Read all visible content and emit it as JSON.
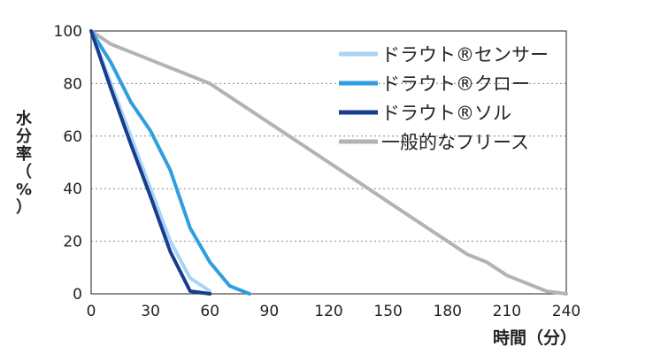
{
  "chart_data": {
    "type": "line",
    "title": "",
    "xlabel": "時間（分）",
    "ylabel": "水分率（%）",
    "xlim": [
      0,
      240
    ],
    "ylim": [
      0,
      100
    ],
    "x_ticks": [
      "0",
      "30",
      "60",
      "90",
      "120",
      "150",
      "180",
      "210",
      "240"
    ],
    "y_ticks": [
      "0",
      "20",
      "40",
      "60",
      "80",
      "100"
    ],
    "grid": "horizontal-dotted",
    "legend_position": "top-right",
    "series": [
      {
        "name": "ドラウト®センサー",
        "color": "#a8d4f5",
        "x": [
          0,
          10,
          20,
          30,
          40,
          50,
          60
        ],
        "y": [
          100,
          80,
          60,
          40,
          20,
          6,
          1
        ]
      },
      {
        "name": "ドラウト®クロー",
        "color": "#2f9ee0",
        "x": [
          0,
          10,
          20,
          30,
          40,
          50,
          60,
          70,
          80
        ],
        "y": [
          100,
          88,
          73,
          62,
          47,
          25,
          12,
          3,
          0
        ]
      },
      {
        "name": "ドラウト®ソル",
        "color": "#173d8c",
        "x": [
          0,
          10,
          20,
          30,
          40,
          50,
          60
        ],
        "y": [
          100,
          78,
          57,
          37,
          16,
          1,
          0
        ]
      },
      {
        "name": "一般的なフリース",
        "color": "#b3b3b3",
        "x": [
          0,
          10,
          20,
          30,
          40,
          50,
          60,
          70,
          80,
          90,
          100,
          110,
          120,
          130,
          140,
          150,
          160,
          170,
          180,
          190,
          200,
          210,
          220,
          230,
          240
        ],
        "y": [
          100,
          95,
          92,
          89,
          86,
          83,
          80,
          75,
          70,
          65,
          60,
          55,
          50,
          45,
          40,
          35,
          30,
          25,
          20,
          15,
          12,
          7,
          4,
          1,
          0
        ]
      }
    ]
  }
}
